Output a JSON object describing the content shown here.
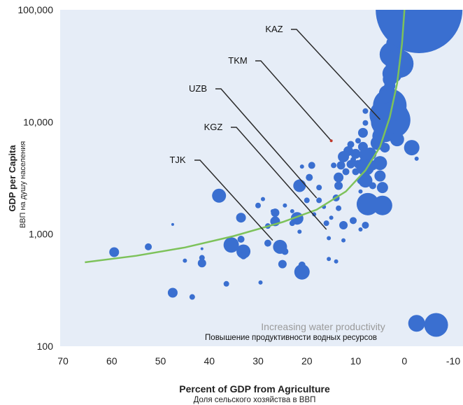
{
  "chart_data": {
    "type": "scatter",
    "xlabel": "Percent of GDP from Agriculture",
    "xlabel_ru": "Доля сельского хозяйства в ВВП",
    "ylabel": "GDP per Capita",
    "ylabel_ru": "ВВП на душу населения",
    "x_reversed": true,
    "xlim": [
      70,
      -10
    ],
    "ylim": [
      100,
      100000
    ],
    "y_scale": "log",
    "x_ticks": [
      "70",
      "60",
      "50",
      "40",
      "30",
      "20",
      "10",
      "0",
      "-10"
    ],
    "y_ticks": [
      "100",
      "1,000",
      "10,000",
      "100,000"
    ],
    "bubble_color": "#3a6fd0",
    "trend_color": "#7dc25a",
    "background": "#e6edf7",
    "annotation_en": "Increasing water productivity",
    "annotation_ru": "Повышение продуктивности водных ресурсов",
    "highlight": [
      {
        "label": "KAZ",
        "x": 5,
        "y": 10500
      },
      {
        "label": "TKM",
        "x": 15,
        "y": 6800
      },
      {
        "label": "UZB",
        "x": 18,
        "y": 2100
      },
      {
        "label": "KGZ",
        "x": 16,
        "y": 1100
      },
      {
        "label": "TJK",
        "x": 27,
        "y": 880
      }
    ],
    "trend": [
      [
        65.5,
        560
      ],
      [
        55,
        640
      ],
      [
        45,
        760
      ],
      [
        35,
        960
      ],
      [
        25,
        1280
      ],
      [
        18,
        1650
      ],
      [
        12,
        2400
      ],
      [
        8,
        3700
      ],
      [
        5,
        6000
      ],
      [
        3,
        11000
      ],
      [
        1.5,
        22000
      ],
      [
        0.5,
        50000
      ],
      [
        0,
        100000
      ]
    ],
    "points": [
      {
        "x": 59.5,
        "y": 690,
        "r": 7
      },
      {
        "x": 52.5,
        "y": 770,
        "r": 5
      },
      {
        "x": 47.5,
        "y": 1220,
        "r": 2
      },
      {
        "x": 47.5,
        "y": 300,
        "r": 7
      },
      {
        "x": 43.5,
        "y": 275,
        "r": 4
      },
      {
        "x": 45,
        "y": 580,
        "r": 3
      },
      {
        "x": 41.5,
        "y": 550,
        "r": 6
      },
      {
        "x": 41.5,
        "y": 615,
        "r": 4
      },
      {
        "x": 41.5,
        "y": 740,
        "r": 2
      },
      {
        "x": 38,
        "y": 2200,
        "r": 10
      },
      {
        "x": 36.5,
        "y": 360,
        "r": 4
      },
      {
        "x": 35.5,
        "y": 800,
        "r": 11
      },
      {
        "x": 33.5,
        "y": 900,
        "r": 5
      },
      {
        "x": 33.5,
        "y": 1400,
        "r": 7
      },
      {
        "x": 33,
        "y": 700,
        "r": 10
      },
      {
        "x": 33,
        "y": 640,
        "r": 5
      },
      {
        "x": 30,
        "y": 1800,
        "r": 4
      },
      {
        "x": 29.5,
        "y": 370,
        "r": 3
      },
      {
        "x": 29,
        "y": 2050,
        "r": 3
      },
      {
        "x": 28,
        "y": 1180,
        "r": 4
      },
      {
        "x": 28,
        "y": 830,
        "r": 5
      },
      {
        "x": 27,
        "y": 1600,
        "r": 3
      },
      {
        "x": 26.5,
        "y": 1550,
        "r": 6
      },
      {
        "x": 26.5,
        "y": 1300,
        "r": 7
      },
      {
        "x": 25.5,
        "y": 770,
        "r": 10
      },
      {
        "x": 24.5,
        "y": 700,
        "r": 5
      },
      {
        "x": 25,
        "y": 540,
        "r": 6
      },
      {
        "x": 24.5,
        "y": 1800,
        "r": 3
      },
      {
        "x": 23,
        "y": 1250,
        "r": 4
      },
      {
        "x": 23,
        "y": 1600,
        "r": 3
      },
      {
        "x": 22,
        "y": 1380,
        "r": 9
      },
      {
        "x": 21.5,
        "y": 2700,
        "r": 9
      },
      {
        "x": 21,
        "y": 460,
        "r": 11
      },
      {
        "x": 21,
        "y": 530,
        "r": 5
      },
      {
        "x": 21.5,
        "y": 1050,
        "r": 3
      },
      {
        "x": 20,
        "y": 2000,
        "r": 4
      },
      {
        "x": 19.5,
        "y": 3200,
        "r": 5
      },
      {
        "x": 21,
        "y": 4000,
        "r": 3
      },
      {
        "x": 19,
        "y": 4100,
        "r": 5
      },
      {
        "x": 18.5,
        "y": 1500,
        "r": 3
      },
      {
        "x": 17.5,
        "y": 2000,
        "r": 4
      },
      {
        "x": 17.5,
        "y": 2600,
        "r": 4
      },
      {
        "x": 16.5,
        "y": 1750,
        "r": 3
      },
      {
        "x": 16,
        "y": 1250,
        "r": 4
      },
      {
        "x": 15.5,
        "y": 600,
        "r": 3
      },
      {
        "x": 15.5,
        "y": 920,
        "r": 3
      },
      {
        "x": 15,
        "y": 1400,
        "r": 3
      },
      {
        "x": 14.5,
        "y": 4100,
        "r": 4
      },
      {
        "x": 14,
        "y": 2100,
        "r": 5
      },
      {
        "x": 13.5,
        "y": 1700,
        "r": 4
      },
      {
        "x": 13.5,
        "y": 2700,
        "r": 6
      },
      {
        "x": 13.5,
        "y": 3200,
        "r": 7
      },
      {
        "x": 13,
        "y": 4100,
        "r": 6
      },
      {
        "x": 12.5,
        "y": 4900,
        "r": 8
      },
      {
        "x": 12.5,
        "y": 1200,
        "r": 6
      },
      {
        "x": 12.5,
        "y": 880,
        "r": 3
      },
      {
        "x": 14,
        "y": 570,
        "r": 3
      },
      {
        "x": 12,
        "y": 3600,
        "r": 5
      },
      {
        "x": 11.5,
        "y": 5500,
        "r": 7
      },
      {
        "x": 11,
        "y": 4200,
        "r": 6
      },
      {
        "x": 11,
        "y": 6300,
        "r": 5
      },
      {
        "x": 10.5,
        "y": 4600,
        "r": 4
      },
      {
        "x": 10,
        "y": 3600,
        "r": 5
      },
      {
        "x": 10,
        "y": 5200,
        "r": 7
      },
      {
        "x": 10.5,
        "y": 1320,
        "r": 5
      },
      {
        "x": 9.5,
        "y": 6800,
        "r": 4
      },
      {
        "x": 9.5,
        "y": 4200,
        "r": 6
      },
      {
        "x": 9,
        "y": 3000,
        "r": 5
      },
      {
        "x": 9,
        "y": 1100,
        "r": 3
      },
      {
        "x": 9,
        "y": 2400,
        "r": 3
      },
      {
        "x": 8.5,
        "y": 6000,
        "r": 7
      },
      {
        "x": 8.5,
        "y": 8000,
        "r": 7
      },
      {
        "x": 8,
        "y": 5100,
        "r": 9
      },
      {
        "x": 8,
        "y": 4000,
        "r": 13
      },
      {
        "x": 8,
        "y": 3000,
        "r": 10
      },
      {
        "x": 8,
        "y": 1200,
        "r": 5
      },
      {
        "x": 8,
        "y": 9800,
        "r": 4
      },
      {
        "x": 8,
        "y": 12500,
        "r": 4
      },
      {
        "x": 7.5,
        "y": 1850,
        "r": 16
      },
      {
        "x": 7,
        "y": 5200,
        "r": 9
      },
      {
        "x": 6.5,
        "y": 4100,
        "r": 7
      },
      {
        "x": 6.5,
        "y": 2700,
        "r": 5
      },
      {
        "x": 5.5,
        "y": 6500,
        "r": 10
      },
      {
        "x": 5,
        "y": 4300,
        "r": 10
      },
      {
        "x": 5,
        "y": 7500,
        "r": 11
      },
      {
        "x": 5,
        "y": 3300,
        "r": 8
      },
      {
        "x": 5,
        "y": 1900,
        "r": 7
      },
      {
        "x": 4.5,
        "y": 2600,
        "r": 8
      },
      {
        "x": 4.5,
        "y": 1800,
        "r": 14
      },
      {
        "x": 4,
        "y": 5900,
        "r": 7
      },
      {
        "x": 4,
        "y": 8300,
        "r": 16
      },
      {
        "x": 4,
        "y": 10000,
        "r": 20
      },
      {
        "x": 4,
        "y": 11500,
        "r": 22
      },
      {
        "x": 4,
        "y": 13300,
        "r": 12
      },
      {
        "x": 3.5,
        "y": 15800,
        "r": 10
      },
      {
        "x": 3.5,
        "y": 18000,
        "r": 12
      },
      {
        "x": 3,
        "y": 14000,
        "r": 24
      },
      {
        "x": 3,
        "y": 21000,
        "r": 8
      },
      {
        "x": 3,
        "y": 24000,
        "r": 10
      },
      {
        "x": 2.5,
        "y": 10400,
        "r": 26
      },
      {
        "x": 2.5,
        "y": 27000,
        "r": 14
      },
      {
        "x": 2.5,
        "y": 40000,
        "r": 18
      },
      {
        "x": 2,
        "y": 32000,
        "r": 12
      },
      {
        "x": 2,
        "y": 50000,
        "r": 12
      },
      {
        "x": 2,
        "y": 80000,
        "r": 16
      },
      {
        "x": 1.5,
        "y": 7000,
        "r": 10
      },
      {
        "x": 1.5,
        "y": 60000,
        "r": 14
      },
      {
        "x": 1.5,
        "y": 95000,
        "r": 14
      },
      {
        "x": 1,
        "y": 12000,
        "r": 12
      },
      {
        "x": 1,
        "y": 33000,
        "r": 20
      },
      {
        "x": 1,
        "y": 70000,
        "r": 22
      },
      {
        "x": 0,
        "y": 60000,
        "r": 16
      },
      {
        "x": 0,
        "y": 90000,
        "r": 28
      },
      {
        "x": -1.5,
        "y": 5900,
        "r": 11
      },
      {
        "x": -2.5,
        "y": 4700,
        "r": 3
      },
      {
        "x": -3,
        "y": 100000,
        "r": 62
      },
      {
        "x": -2,
        "y": 160,
        "r": 6
      },
      {
        "x": -2.5,
        "y": 160,
        "r": 12
      },
      {
        "x": -6.5,
        "y": 155,
        "r": 17
      }
    ]
  }
}
